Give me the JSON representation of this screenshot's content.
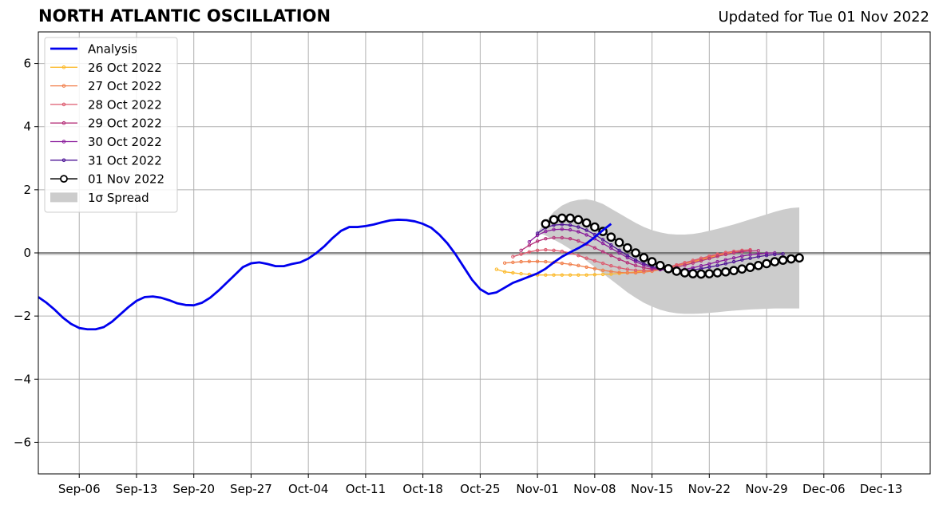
{
  "chart_data": {
    "type": "line",
    "title": "NORTH ATLANTIC OSCILLATION",
    "subtitle": "Updated for Tue 01 Nov 2022",
    "xlabel": "",
    "ylabel": "",
    "ylim": [
      -7,
      7
    ],
    "yticks": [
      -6,
      -4,
      -2,
      0,
      2,
      4,
      6
    ],
    "xlim": [
      "2022-09-01",
      "2022-12-19"
    ],
    "xticks": [
      "2022-09-06",
      "2022-09-13",
      "2022-09-20",
      "2022-09-27",
      "2022-10-04",
      "2022-10-11",
      "2022-10-18",
      "2022-10-25",
      "2022-11-01",
      "2022-11-08",
      "2022-11-15",
      "2022-11-22",
      "2022-11-29",
      "2022-12-06",
      "2022-12-13"
    ],
    "xtick_labels": [
      "Sep-06",
      "Sep-13",
      "Sep-20",
      "Sep-27",
      "Oct-04",
      "Oct-11",
      "Oct-18",
      "Oct-25",
      "Nov-01",
      "Nov-08",
      "Nov-15",
      "Nov-22",
      "Nov-29",
      "Dec-06",
      "Dec-13"
    ],
    "grid": true,
    "legend_position": "top-left",
    "analysis": {
      "name": "Analysis",
      "color": "#0000ee",
      "start": "2022-09-01",
      "values": [
        -1.4,
        -1.58,
        -1.8,
        -2.05,
        -2.25,
        -2.38,
        -2.42,
        -2.42,
        -2.35,
        -2.18,
        -1.95,
        -1.72,
        -1.52,
        -1.4,
        -1.38,
        -1.42,
        -1.5,
        -1.6,
        -1.65,
        -1.66,
        -1.58,
        -1.42,
        -1.2,
        -0.95,
        -0.7,
        -0.45,
        -0.33,
        -0.3,
        -0.35,
        -0.42,
        -0.42,
        -0.35,
        -0.3,
        -0.18,
        0.0,
        0.22,
        0.48,
        0.7,
        0.82,
        0.82,
        0.85,
        0.9,
        0.97,
        1.03,
        1.05,
        1.04,
        1.0,
        0.92,
        0.8,
        0.58,
        0.3,
        -0.05,
        -0.45,
        -0.85,
        -1.15,
        -1.3,
        -1.25,
        -1.1,
        -0.95,
        -0.85,
        -0.75,
        -0.65,
        -0.5,
        -0.3,
        -0.12,
        0.02,
        0.15,
        0.3,
        0.5,
        0.72,
        0.92
      ]
    },
    "forecasts": [
      {
        "name": "26 Oct 2022",
        "color": "#fcba2d",
        "start": "2022-10-27",
        "values": [
          -0.52,
          -0.6,
          -0.63,
          -0.66,
          -0.68,
          -0.7,
          -0.7,
          -0.7,
          -0.7,
          -0.7,
          -0.7,
          -0.7,
          -0.69,
          -0.68,
          -0.67,
          -0.65,
          -0.63,
          -0.6,
          -0.57,
          -0.54,
          -0.5,
          -0.45,
          -0.4,
          -0.34,
          -0.28,
          -0.22,
          -0.15,
          -0.08,
          -0.02,
          0.03,
          0.07
        ]
      },
      {
        "name": "27 Oct 2022",
        "color": "#f17f4b",
        "start": "2022-10-28",
        "values": [
          -0.32,
          -0.3,
          -0.28,
          -0.27,
          -0.27,
          -0.28,
          -0.3,
          -0.33,
          -0.36,
          -0.4,
          -0.45,
          -0.5,
          -0.55,
          -0.59,
          -0.62,
          -0.63,
          -0.63,
          -0.61,
          -0.58,
          -0.53,
          -0.47,
          -0.41,
          -0.34,
          -0.27,
          -0.2,
          -0.13,
          -0.06,
          0.0,
          0.04,
          0.07,
          0.08
        ]
      },
      {
        "name": "28 Oct 2022",
        "color": "#dd5a6e",
        "start": "2022-10-29",
        "values": [
          -0.12,
          -0.04,
          0.03,
          0.08,
          0.1,
          0.08,
          0.05,
          0.0,
          -0.08,
          -0.17,
          -0.25,
          -0.33,
          -0.41,
          -0.47,
          -0.52,
          -0.55,
          -0.56,
          -0.54,
          -0.5,
          -0.45,
          -0.38,
          -0.31,
          -0.24,
          -0.17,
          -0.1,
          -0.04,
          0.01,
          0.05,
          0.08,
          0.1
        ]
      },
      {
        "name": "29 Oct 2022",
        "color": "#b5317a",
        "start": "2022-10-30",
        "values": [
          0.08,
          0.24,
          0.37,
          0.45,
          0.48,
          0.48,
          0.45,
          0.38,
          0.28,
          0.16,
          0.04,
          -0.08,
          -0.2,
          -0.31,
          -0.4,
          -0.47,
          -0.51,
          -0.52,
          -0.5,
          -0.45,
          -0.39,
          -0.32,
          -0.25,
          -0.18,
          -0.11,
          -0.05,
          0.0,
          0.04,
          0.06,
          0.07
        ]
      },
      {
        "name": "30 Oct 2022",
        "color": "#8a1c9c",
        "start": "2022-10-31",
        "values": [
          0.35,
          0.56,
          0.68,
          0.74,
          0.75,
          0.73,
          0.67,
          0.57,
          0.45,
          0.3,
          0.15,
          0.0,
          -0.15,
          -0.28,
          -0.39,
          -0.47,
          -0.53,
          -0.55,
          -0.55,
          -0.52,
          -0.47,
          -0.41,
          -0.35,
          -0.28,
          -0.22,
          -0.16,
          -0.1,
          -0.06,
          -0.03,
          -0.01,
          0.0
        ]
      },
      {
        "name": "31 Oct 2022",
        "color": "#4e1596",
        "start": "2022-11-01",
        "values": [
          0.62,
          0.8,
          0.88,
          0.9,
          0.88,
          0.82,
          0.72,
          0.58,
          0.42,
          0.25,
          0.08,
          -0.08,
          -0.22,
          -0.34,
          -0.43,
          -0.5,
          -0.54,
          -0.56,
          -0.56,
          -0.54,
          -0.5,
          -0.45,
          -0.4,
          -0.34,
          -0.28,
          -0.22,
          -0.17,
          -0.12,
          -0.08,
          -0.05,
          -0.03
        ]
      },
      {
        "name": "01 Nov 2022",
        "color": "#000000",
        "start": "2022-11-02",
        "values": [
          0.92,
          1.05,
          1.1,
          1.1,
          1.05,
          0.95,
          0.82,
          0.68,
          0.5,
          0.33,
          0.16,
          0.0,
          -0.15,
          -0.28,
          -0.4,
          -0.5,
          -0.58,
          -0.63,
          -0.66,
          -0.67,
          -0.66,
          -0.63,
          -0.6,
          -0.56,
          -0.51,
          -0.46,
          -0.4,
          -0.34,
          -0.28,
          -0.23,
          -0.19,
          -0.16
        ]
      }
    ],
    "spread": {
      "name": "1σ Spread",
      "color": "#cccccc",
      "start": "2022-11-01",
      "upper": [
        0.65,
        1.0,
        1.3,
        1.5,
        1.62,
        1.68,
        1.7,
        1.65,
        1.55,
        1.4,
        1.25,
        1.1,
        0.95,
        0.82,
        0.72,
        0.65,
        0.6,
        0.58,
        0.58,
        0.6,
        0.64,
        0.7,
        0.76,
        0.83,
        0.9,
        0.98,
        1.06,
        1.14,
        1.22,
        1.3,
        1.37,
        1.42,
        1.44
      ],
      "lower": [
        0.65,
        0.55,
        0.42,
        0.28,
        0.12,
        -0.05,
        -0.25,
        -0.45,
        -0.65,
        -0.85,
        -1.05,
        -1.25,
        -1.42,
        -1.58,
        -1.7,
        -1.8,
        -1.87,
        -1.91,
        -1.93,
        -1.93,
        -1.92,
        -1.9,
        -1.88,
        -1.85,
        -1.83,
        -1.81,
        -1.79,
        -1.78,
        -1.77,
        -1.76,
        -1.76,
        -1.76,
        -1.76
      ]
    }
  }
}
